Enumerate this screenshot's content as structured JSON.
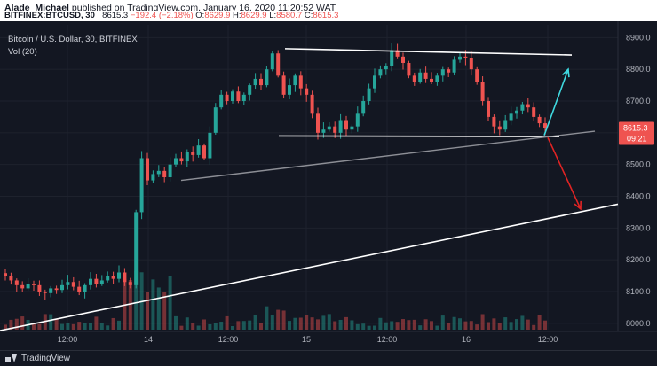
{
  "header": {
    "author": "Alade_Michael",
    "published": "published on TradingView.com, January 16, 2020 11:20:52 WAT",
    "symbol_interval": "BITFINEX:BTCUSD, 30",
    "last": "8615.3",
    "change": "−192.4 (−2.18%)",
    "open_label": "O:",
    "open": "8629.9",
    "high_label": "H:",
    "high": "8629.9",
    "low_label": "L:",
    "low": "8580.7",
    "close_label": "C:",
    "close": "8615.3"
  },
  "legend": {
    "title": "Bitcoin / U.S. Dollar, 30, BITFINEX",
    "volume": "Vol (20)"
  },
  "price_scale": {
    "ticks": [
      "8900.0",
      "8800.0",
      "8700.0",
      "8600.0",
      "8500.0",
      "8400.0",
      "8300.0",
      "8200.0",
      "8100.0",
      "8000.0"
    ],
    "tick_values": [
      8900,
      8800,
      8700,
      8600,
      8500,
      8400,
      8300,
      8200,
      8100,
      8000
    ],
    "current_price": "8615.3",
    "countdown": "09:21"
  },
  "time_scale": {
    "ticks": [
      "12:00",
      "14",
      "12:00",
      "15",
      "12:00",
      "16",
      "12:00"
    ]
  },
  "footer": {
    "brand": "TradingView"
  },
  "colors": {
    "background": "#131722",
    "up": "#26a69a",
    "down": "#ef5350",
    "trendline": "#ffffff",
    "trendline_gray": "#8d8f96",
    "arrow_up": "#3fd9e0",
    "arrow_down": "#e02424",
    "price_label_bg": "#ef5350"
  },
  "chart_data": {
    "type": "candlestick",
    "symbol": "BITFINEX:BTCUSD",
    "interval": "30",
    "ylim": [
      7980,
      8940
    ],
    "close_path": [
      8150,
      8135,
      8120,
      8110,
      8125,
      8120,
      8100,
      8095,
      8110,
      8105,
      8120,
      8130,
      8115,
      8100,
      8120,
      8140,
      8125,
      8135,
      8150,
      8140,
      8160,
      8130,
      8120,
      8350,
      8520,
      8450,
      8470,
      8480,
      8460,
      8500,
      8520,
      8510,
      8540,
      8530,
      8560,
      8520,
      8600,
      8680,
      8720,
      8700,
      8730,
      8700,
      8720,
      8750,
      8770,
      8750,
      8800,
      8850,
      8780,
      8720,
      8750,
      8780,
      8740,
      8720,
      8660,
      8600,
      8610,
      8620,
      8600,
      8640,
      8610,
      8620,
      8660,
      8700,
      8740,
      8780,
      8800,
      8810,
      8860,
      8840,
      8820,
      8780,
      8760,
      8790,
      8770,
      8760,
      8780,
      8800,
      8790,
      8830,
      8840,
      8835,
      8800,
      8760,
      8700,
      8650,
      8620,
      8610,
      8640,
      8660,
      8670,
      8690,
      8680,
      8650,
      8630,
      8615
    ]
  }
}
